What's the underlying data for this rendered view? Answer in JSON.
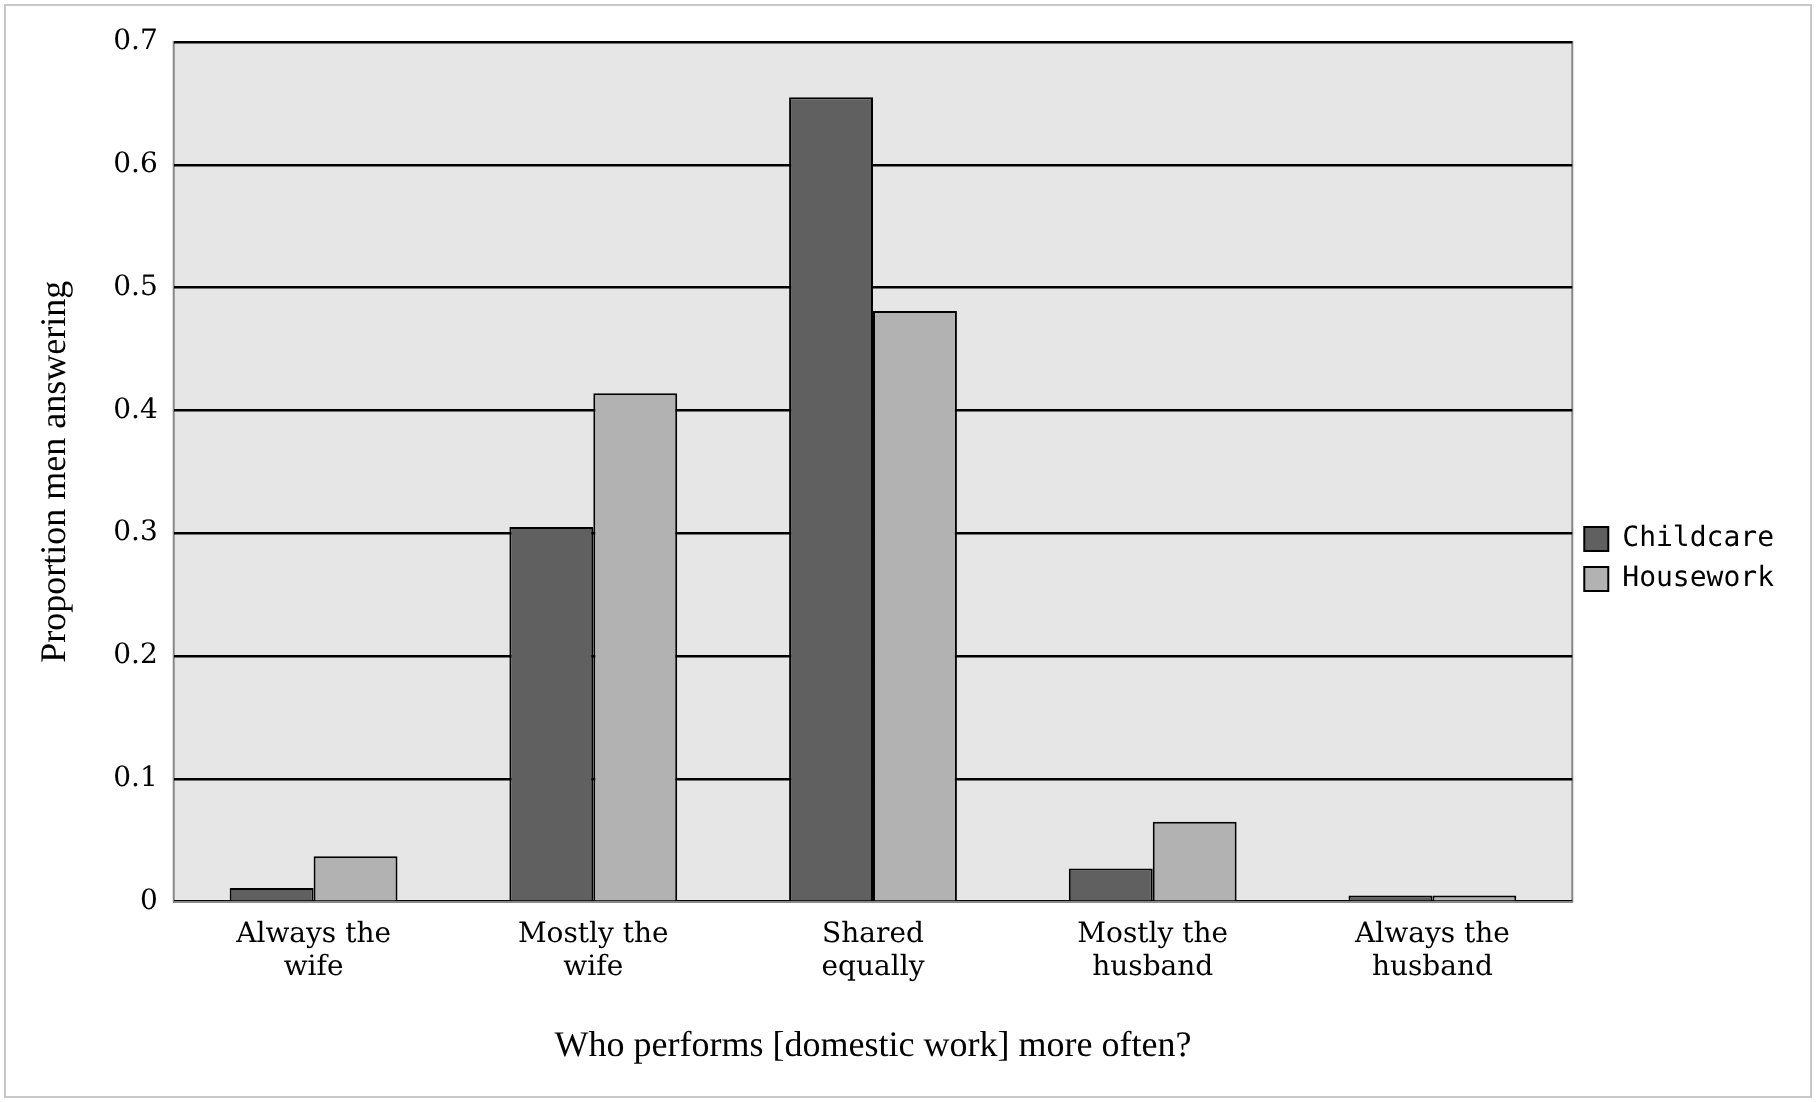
{
  "chart_data": {
    "type": "bar",
    "xlabel": "Who performs [domestic work] more often?",
    "ylabel": "Proportion men answering",
    "categories": [
      "Always the wife",
      "Mostly the wife",
      "Shared equally",
      "Mostly the husband",
      "Always the husband"
    ],
    "series": [
      {
        "name": "Childcare",
        "color": "#606060",
        "values": [
          0.011,
          0.305,
          0.655,
          0.027,
          0.005
        ]
      },
      {
        "name": "Housework",
        "color": "#b2b2b2",
        "values": [
          0.037,
          0.414,
          0.481,
          0.065,
          0.005
        ]
      }
    ],
    "ylim": [
      0,
      0.7
    ],
    "yticks": [
      0,
      0.1,
      0.2,
      0.3,
      0.4,
      0.5,
      0.6,
      0.7
    ],
    "grid": "y",
    "legend": "right"
  }
}
